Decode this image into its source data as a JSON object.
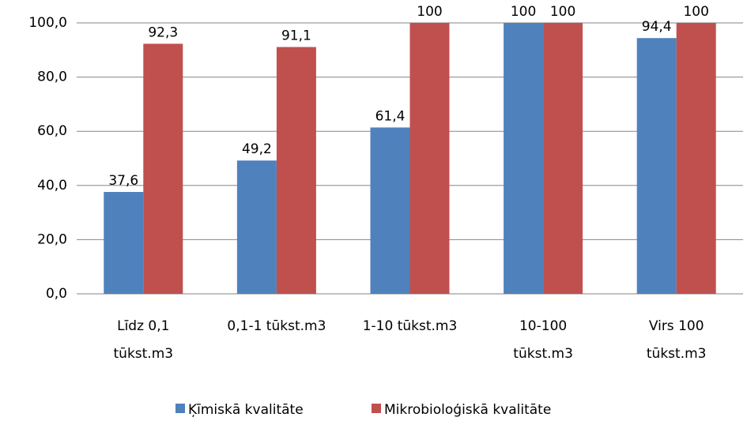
{
  "chart_data": {
    "type": "bar",
    "categories": [
      [
        "Līdz 0,1",
        "tūkst.m3"
      ],
      [
        "0,1-1 tūkst.m3"
      ],
      [
        "1-10 tūkst.m3"
      ],
      [
        "10-100",
        "tūkst.m3"
      ],
      [
        "Virs 100",
        "tūkst.m3"
      ]
    ],
    "series": [
      {
        "name": "Ķīmiskā kvalitāte",
        "color": "#4f81bd",
        "values": [
          37.6,
          49.2,
          61.4,
          100,
          94.4
        ],
        "value_labels": [
          "37,6",
          "49,2",
          "61,4",
          "100",
          "94,4"
        ]
      },
      {
        "name": "Mikrobioloģiskā kvalitāte",
        "color": "#c0504d",
        "values": [
          92.3,
          91.1,
          100,
          100,
          100
        ],
        "value_labels": [
          "92,3",
          "91,1",
          "100",
          "100",
          "100"
        ]
      }
    ],
    "ylim": [
      0,
      100
    ],
    "yticks": [
      {
        "value": 0,
        "label": "0,0"
      },
      {
        "value": 20,
        "label": "20,0"
      },
      {
        "value": 40,
        "label": "40,0"
      },
      {
        "value": 60,
        "label": "60,0"
      },
      {
        "value": 80,
        "label": "80,0"
      },
      {
        "value": 100,
        "label": "100,0"
      }
    ],
    "grid": true,
    "legend": "bottom"
  }
}
